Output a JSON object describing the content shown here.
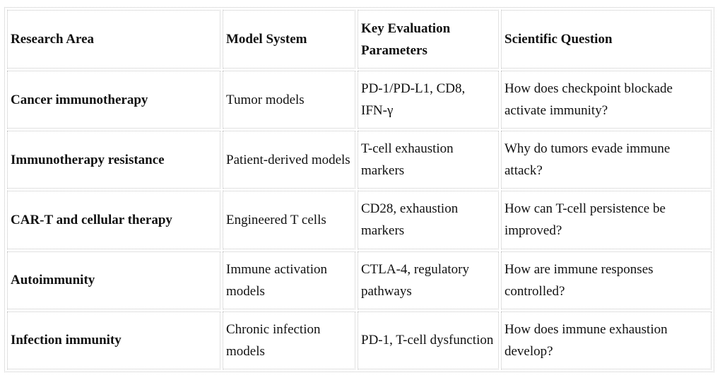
{
  "table": {
    "header": [
      "Research Area",
      "Model System",
      "Key Evaluation Parameters",
      "Scientific Question"
    ],
    "rows": [
      [
        "Cancer immunotherapy",
        "Tumor models",
        "PD-1/PD-L1, CD8, IFN-γ",
        "How does checkpoint blockade activate immunity?"
      ],
      [
        "Immunotherapy resistance",
        "Patient-derived models",
        "T-cell exhaustion markers",
        "Why do tumors evade immune attack?"
      ],
      [
        "CAR-T and cellular therapy",
        "Engineered T cells",
        "CD28, exhaustion markers",
        "How can T-cell persistence be improved?"
      ],
      [
        "Autoimmunity",
        "Immune activation models",
        "CTLA-4, regulatory pathways",
        "How are immune responses controlled?"
      ],
      [
        "Infection immunity",
        "Chronic infection models",
        "PD-1, T-cell dysfunction",
        "How does immune exhaustion develop?"
      ]
    ]
  }
}
